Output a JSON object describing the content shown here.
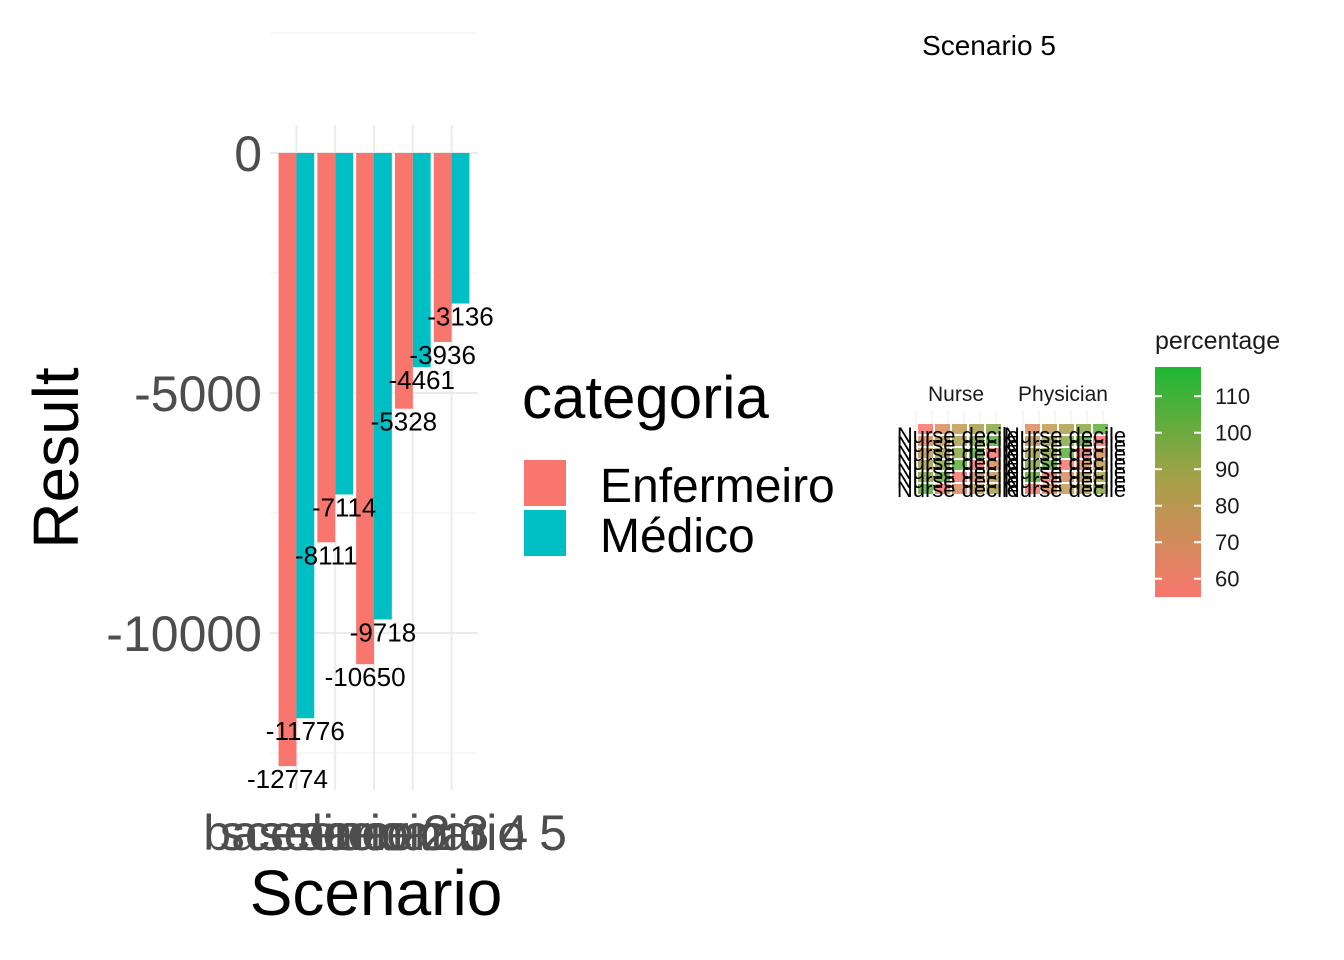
{
  "chart_data": [
    {
      "type": "bar",
      "xlabel": "Scenario",
      "ylabel": "Result",
      "categories": [
        "baseline",
        "scenario 2",
        "scenario 3",
        "scenario 4",
        "scenario 5"
      ],
      "x_tick_labels_rendered": [
        "baseline",
        "scenario 2",
        "scenario 3",
        "scenario 4",
        "scenario 5"
      ],
      "y_ticks": [
        0,
        -5000,
        -10000
      ],
      "y_tick_labels": [
        "0",
        "-5000",
        "-10000"
      ],
      "ylim": [
        -13300,
        600
      ],
      "grid": true,
      "legend": {
        "title": "categoria",
        "placement": "right",
        "entries": [
          "Enfermeiro",
          "Médico"
        ]
      },
      "series": [
        {
          "name": "Enfermeiro",
          "color": "#F8766D",
          "values": [
            -12774,
            -8111,
            -10650,
            -5328,
            -3936
          ]
        },
        {
          "name": "Médico",
          "color": "#00BFC4",
          "values": [
            -11776,
            -7114,
            -9718,
            -4461,
            -3136
          ]
        }
      ],
      "data_labels": {
        "Enfermeiro": [
          "-12774",
          "-8111",
          "-10650",
          "-5328",
          "-3936"
        ],
        "Médico": [
          "-11776",
          "-7114",
          "-9718",
          "-4461",
          "-3136"
        ]
      }
    },
    {
      "type": "heatmap",
      "title": "Scenario 5",
      "facets": [
        "Nurse",
        "Physician"
      ],
      "overlapping_text": "Nurse decile",
      "legend": {
        "title": "percentage",
        "placement": "right",
        "ticks": [
          60,
          70,
          80,
          90,
          100,
          110
        ],
        "range": [
          55,
          118
        ],
        "low_color": "#F8766D",
        "high_color": "#1DB833"
      }
    }
  ]
}
